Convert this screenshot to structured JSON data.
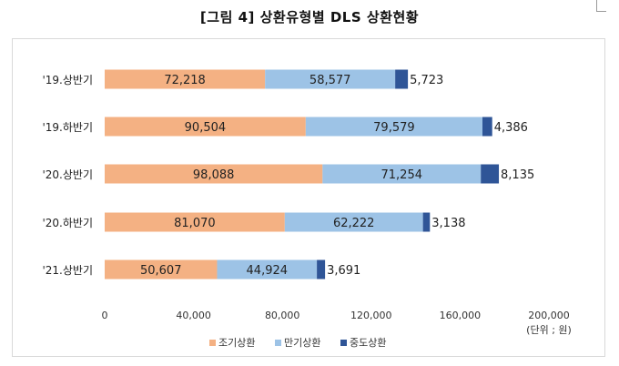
{
  "page": {
    "title": "[그림 4] 상환유형별 DLS 상환현황"
  },
  "chart_data": {
    "type": "bar",
    "orientation": "horizontal",
    "stacked": true,
    "categories": [
      "'19.상반기",
      "'19.하반기",
      "'20.상반기",
      "'20.하반기",
      "'21.상반기"
    ],
    "series": [
      {
        "name": "조기상환",
        "color": "#f4b183",
        "values": [
          72218,
          90504,
          98088,
          81070,
          50607
        ]
      },
      {
        "name": "만기상환",
        "color": "#9dc3e6",
        "values": [
          58577,
          79579,
          71254,
          62222,
          44924
        ]
      },
      {
        "name": "중도상환",
        "color": "#2f5597",
        "values": [
          5723,
          4386,
          8135,
          3138,
          3691
        ]
      }
    ],
    "data_labels": {
      "조기상환": [
        "72,218",
        "90,504",
        "98,088",
        "81,070",
        "50,607"
      ],
      "만기상환": [
        "58,577",
        "79,579",
        "71,254",
        "62,222",
        "44,924"
      ],
      "중도상환": [
        "5,723",
        "4,386",
        "8,135",
        "3,138",
        "3,691"
      ]
    },
    "xlim": [
      0,
      200000
    ],
    "x_ticks": [
      0,
      40000,
      80000,
      120000,
      160000,
      200000
    ],
    "x_tick_labels": [
      "0",
      "40,000",
      "80,000",
      "120,000",
      "160,000",
      "200,000"
    ],
    "unit_label": "(단위 ; 원)",
    "grid": false,
    "legend_position": "bottom"
  }
}
